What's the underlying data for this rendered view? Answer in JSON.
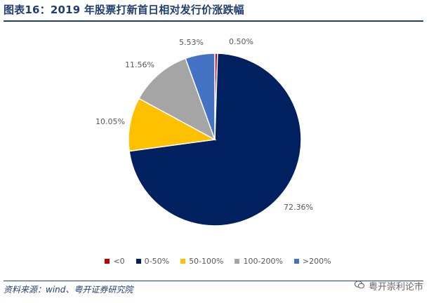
{
  "title": "图表16：2019 年股票打新首日相对发行价涨跌幅",
  "source": "资料来源：wind、粤开证券研究院",
  "watermark": {
    "text": "粤开崇利论市",
    "icon": "wechat-icon"
  },
  "colors": {
    "brand": "#1f3f70"
  },
  "chart_data": {
    "type": "pie",
    "title": "",
    "legend_position": "bottom",
    "start": "12 o'clock, clockwise",
    "categories": [
      "<0",
      "0-50%",
      "50-100%",
      "100-200%",
      ">200%"
    ],
    "values": [
      0.5,
      72.36,
      10.05,
      11.56,
      5.53
    ],
    "labels": [
      "0.50%",
      "72.36%",
      "10.05%",
      "11.56%",
      "5.53%"
    ],
    "colors": [
      "#c00000",
      "#002060",
      "#ffc000",
      "#a5a5a5",
      "#4472c4"
    ]
  }
}
